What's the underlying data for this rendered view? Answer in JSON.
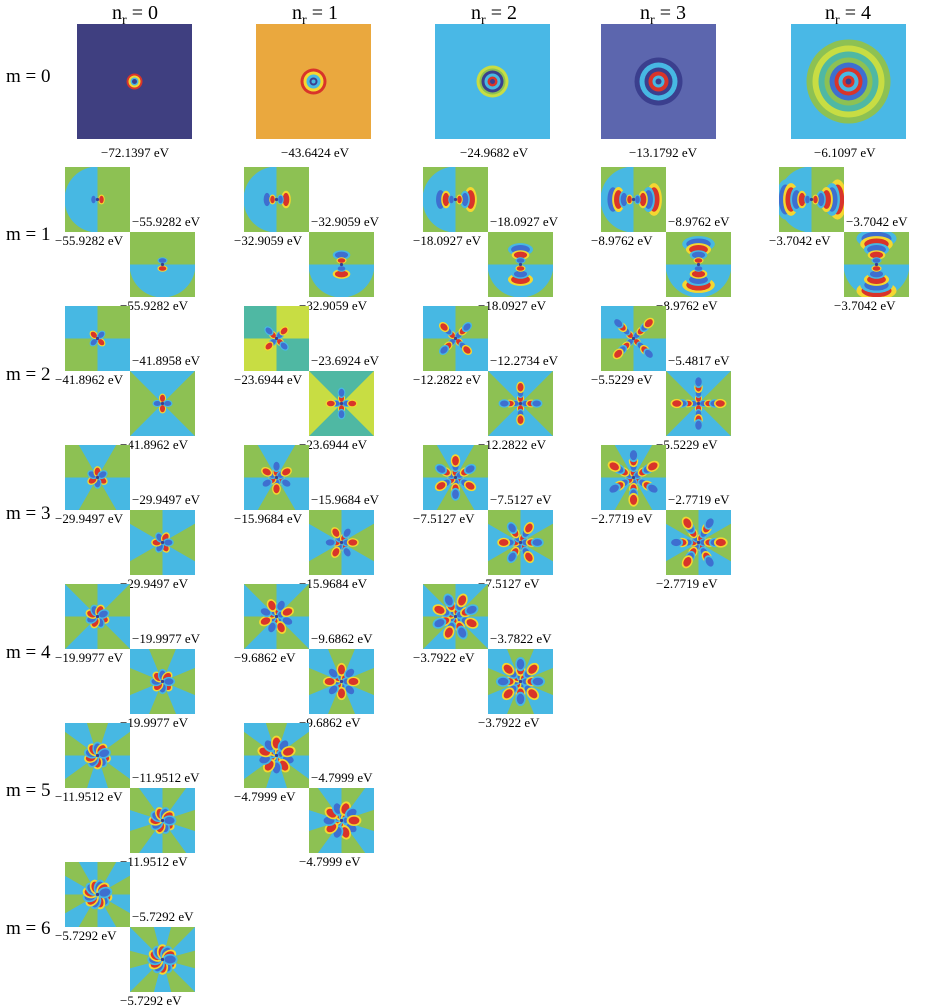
{
  "column_headers": [
    {
      "var": "n",
      "sub": "r",
      "rest": " = 0"
    },
    {
      "var": "n",
      "sub": "r",
      "rest": " = 1"
    },
    {
      "var": "n",
      "sub": "r",
      "rest": " = 2"
    },
    {
      "var": "n",
      "sub": "r",
      "rest": " = 3"
    },
    {
      "var": "n",
      "sub": "r",
      "rest": " = 4"
    }
  ],
  "row_labels": [
    "m = 0",
    "m = 1",
    "m = 2",
    "m = 3",
    "m = 4",
    "m = 5",
    "m = 6"
  ],
  "m0_energies": [
    "−72.1397 eV",
    "−43.6424 eV",
    "−24.9682 eV",
    "−13.1792 eV",
    "−6.1097 eV"
  ],
  "m0_background_colors": [
    "#3f3f80",
    "#eaa83e",
    "#49b8e6",
    "#5c66ae",
    "#49b8e6"
  ],
  "pairs": [
    {
      "m": 1,
      "nr": 0,
      "e1": "−55.9282 eV",
      "e2": "−55.9282 eV"
    },
    {
      "m": 1,
      "nr": 1,
      "e1": "−32.9059 eV",
      "e2": "−32.9059 eV"
    },
    {
      "m": 1,
      "nr": 2,
      "e1": "−18.0927 eV",
      "e2": "−18.0927 eV"
    },
    {
      "m": 1,
      "nr": 3,
      "e1": "−8.9762 eV",
      "e2": "−8.9762 eV"
    },
    {
      "m": 1,
      "nr": 4,
      "e1": "−3.7042 eV",
      "e2": "−3.7042 eV"
    },
    {
      "m": 2,
      "nr": 0,
      "e1": "−41.8962 eV",
      "e2": "−41.8958 eV"
    },
    {
      "m": 2,
      "nr": 1,
      "e1": "−23.6944 eV",
      "e2": "−23.6924 eV"
    },
    {
      "m": 2,
      "nr": 2,
      "e1": "−12.2822 eV",
      "e2": "−12.2734 eV"
    },
    {
      "m": 2,
      "nr": 3,
      "e1": "−5.5229 eV",
      "e2": "−5.4817 eV"
    },
    {
      "m": 3,
      "nr": 0,
      "e1": "−29.9497 eV",
      "e2": "−29.9497 eV"
    },
    {
      "m": 3,
      "nr": 1,
      "e1": "−15.9684 eV",
      "e2": "−15.9684 eV"
    },
    {
      "m": 3,
      "nr": 2,
      "e1": "−7.5127 eV",
      "e2": "−7.5127 eV"
    },
    {
      "m": 3,
      "nr": 3,
      "e1": "−2.7719 eV",
      "e2": "−2.7719 eV"
    },
    {
      "m": 4,
      "nr": 0,
      "e1": "−19.9977 eV",
      "e2": "−19.9977 eV"
    },
    {
      "m": 4,
      "nr": 1,
      "e1": "−9.6862 eV",
      "e2": "−9.6862 eV"
    },
    {
      "m": 4,
      "nr": 2,
      "e1": "−3.7922 eV",
      "e2": "−3.7822 eV"
    },
    {
      "m": 5,
      "nr": 0,
      "e1": "−11.9512 eV",
      "e2": "−11.9512 eV"
    },
    {
      "m": 5,
      "nr": 1,
      "e1": "−4.7999 eV",
      "e2": "−4.7999 eV"
    },
    {
      "m": 6,
      "nr": 0,
      "e1": "−5.7292 eV",
      "e2": "−5.7292 eV"
    }
  ],
  "palette": {
    "deep_blue": "#3b3f8e",
    "blue": "#3e6fd0",
    "cyan": "#47b8e3",
    "teal": "#4fb8a3",
    "green": "#8dc153",
    "yellow_green": "#c8dd43",
    "yellow": "#f4d731",
    "orange": "#eaa83e",
    "red": "#d9342a"
  }
}
